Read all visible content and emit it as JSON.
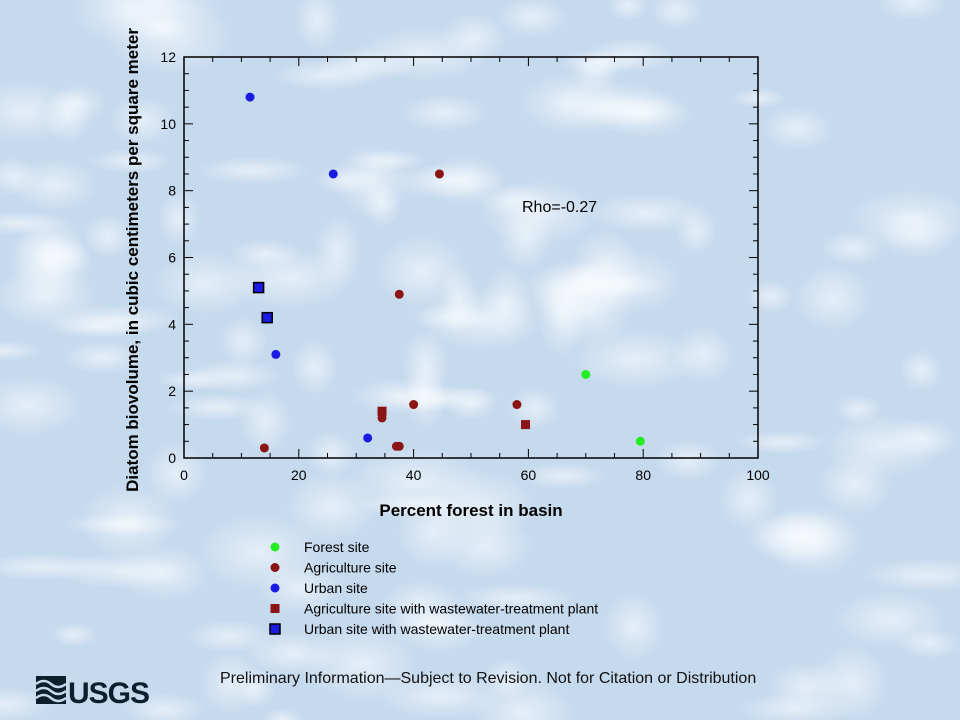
{
  "chart_data": {
    "type": "scatter",
    "title": "",
    "xlabel": "Percent forest in basin",
    "ylabel": "Diatom biovolume, in cubic centimeters per square meter",
    "xlim": [
      0,
      100
    ],
    "ylim": [
      0,
      12
    ],
    "x_ticks": [
      0,
      20,
      40,
      60,
      80,
      100
    ],
    "y_ticks": [
      0,
      2,
      4,
      6,
      8,
      10,
      12
    ],
    "grid": false,
    "legend_position": "below-plot",
    "annotation": "Rho=-0.27",
    "series": [
      {
        "name": "Forest site",
        "marker": "circle",
        "color": "#22ee22",
        "points": [
          [
            70,
            2.5
          ],
          [
            79.5,
            0.5
          ]
        ]
      },
      {
        "name": "Agriculture site",
        "marker": "circle",
        "color": "#8b1414",
        "points": [
          [
            44.5,
            8.5
          ],
          [
            37.5,
            4.9
          ],
          [
            40,
            1.6
          ],
          [
            58,
            1.6
          ],
          [
            34.5,
            1.2
          ],
          [
            37,
            0.35
          ],
          [
            37.5,
            0.35
          ],
          [
            14,
            0.3
          ]
        ]
      },
      {
        "name": "Urban site",
        "marker": "circle",
        "color": "#1a1ae0",
        "points": [
          [
            11.5,
            10.8
          ],
          [
            26,
            8.5
          ],
          [
            16,
            3.1
          ],
          [
            32,
            0.6
          ]
        ]
      },
      {
        "name": "Agriculture site with wastewater-treatment plant",
        "marker": "square",
        "color": "#8b1414",
        "points": [
          [
            34.5,
            1.4
          ],
          [
            59.5,
            1.0
          ]
        ]
      },
      {
        "name": "Urban site with wastewater-treatment plant",
        "marker": "square-outlined",
        "color": "#1a1ae0",
        "points": [
          [
            13,
            5.1
          ],
          [
            14.5,
            4.2
          ]
        ]
      }
    ]
  },
  "footer": {
    "disclaimer": "Preliminary Information—Subject to Revision. Not for Citation or Distribution",
    "logo_text": "USGS"
  }
}
